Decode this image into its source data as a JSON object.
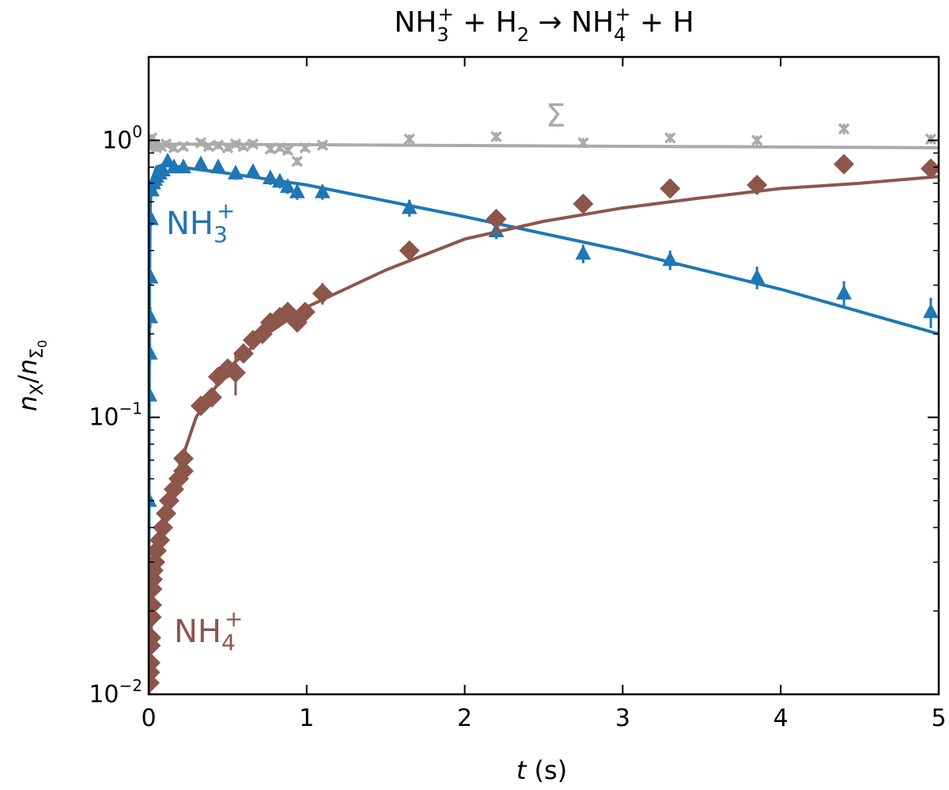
{
  "chart_data": {
    "type": "scatter",
    "title": "NH3+ + H2 → NH4+ + H",
    "title_parts": {
      "a": "NH",
      "a_sub": "3",
      "a_sup": "+",
      "plus1": " + H",
      "b_sub": "2",
      "arrow": " → NH",
      "c_sub": "4",
      "c_sup": "+",
      "end": " + H"
    },
    "xlabel": "t (s)",
    "xlabel_parts": {
      "var": "t",
      "unit": " (s)"
    },
    "ylabel": "nX/nΣ0",
    "ylabel_parts": {
      "n1": "n",
      "sub1": "X",
      "slash": "/",
      "n2": "n",
      "sub2": "Σ",
      "sub2_sub": "0"
    },
    "xlim": [
      0,
      5
    ],
    "ylim": [
      0.01,
      2.0
    ],
    "yscale": "log",
    "grid": false,
    "x_ticks": [
      "0",
      "1",
      "2",
      "3",
      "4",
      "5"
    ],
    "y_ticks": [
      {
        "base": "10",
        "exp": "−2",
        "value": 0.01
      },
      {
        "base": "10",
        "exp": "−1",
        "value": 0.1
      },
      {
        "base": "10",
        "exp": "0",
        "value": 1
      }
    ],
    "series": [
      {
        "name": "Σ",
        "label_parts": {
          "main": "Σ"
        },
        "color": "#aaaaaa",
        "marker": "x",
        "points": [
          {
            "x": 0.0,
            "y": 0.97,
            "err": 0.03
          },
          {
            "x": 0.01,
            "y": 0.99,
            "err": 0.03
          },
          {
            "x": 0.02,
            "y": 1.02,
            "err": 0.03
          },
          {
            "x": 0.04,
            "y": 0.96,
            "err": 0.03
          },
          {
            "x": 0.05,
            "y": 0.94,
            "err": 0.03
          },
          {
            "x": 0.08,
            "y": 0.95,
            "err": 0.03
          },
          {
            "x": 0.11,
            "y": 0.97,
            "err": 0.03
          },
          {
            "x": 0.16,
            "y": 0.94,
            "err": 0.03
          },
          {
            "x": 0.22,
            "y": 0.95,
            "err": 0.03
          },
          {
            "x": 0.33,
            "y": 0.98,
            "err": 0.03
          },
          {
            "x": 0.38,
            "y": 0.95,
            "err": 0.03
          },
          {
            "x": 0.44,
            "y": 0.96,
            "err": 0.03
          },
          {
            "x": 0.5,
            "y": 0.94,
            "err": 0.03
          },
          {
            "x": 0.55,
            "y": 0.97,
            "err": 0.03
          },
          {
            "x": 0.6,
            "y": 0.95,
            "err": 0.03
          },
          {
            "x": 0.66,
            "y": 0.97,
            "err": 0.03
          },
          {
            "x": 0.77,
            "y": 0.93,
            "err": 0.03
          },
          {
            "x": 0.83,
            "y": 0.94,
            "err": 0.03
          },
          {
            "x": 0.88,
            "y": 0.92,
            "err": 0.03
          },
          {
            "x": 0.94,
            "y": 0.84,
            "err": 0.03
          },
          {
            "x": 0.99,
            "y": 0.94,
            "err": 0.03
          },
          {
            "x": 1.1,
            "y": 0.96,
            "err": 0.03
          },
          {
            "x": 1.65,
            "y": 1.01,
            "err": 0.04
          },
          {
            "x": 2.2,
            "y": 1.03,
            "err": 0.04
          },
          {
            "x": 2.75,
            "y": 0.98,
            "err": 0.04
          },
          {
            "x": 3.3,
            "y": 1.02,
            "err": 0.04
          },
          {
            "x": 3.85,
            "y": 1.0,
            "err": 0.04
          },
          {
            "x": 4.4,
            "y": 1.1,
            "err": 0.05
          },
          {
            "x": 4.95,
            "y": 1.01,
            "err": 0.04
          }
        ],
        "fit": [
          {
            "x": 0,
            "y": 0.97
          },
          {
            "x": 5,
            "y": 0.94
          }
        ]
      },
      {
        "name": "NH3+",
        "label_parts": {
          "main": "NH",
          "sub": "3",
          "sup": "+"
        },
        "color": "#1f77b4",
        "marker": "triangle",
        "points": [
          {
            "x": 0.0,
            "y": 0.03,
            "err": 0.003
          },
          {
            "x": 0.003,
            "y": 0.05,
            "err": 0.005
          },
          {
            "x": 0.005,
            "y": 0.12,
            "err": 0.01
          },
          {
            "x": 0.008,
            "y": 0.17,
            "err": 0.015
          },
          {
            "x": 0.01,
            "y": 0.23,
            "err": 0.02
          },
          {
            "x": 0.012,
            "y": 0.32,
            "err": 0.02
          },
          {
            "x": 0.015,
            "y": 0.52,
            "err": 0.03
          },
          {
            "x": 0.02,
            "y": 0.66,
            "err": 0.03
          },
          {
            "x": 0.03,
            "y": 0.7,
            "err": 0.03
          },
          {
            "x": 0.04,
            "y": 0.72,
            "err": 0.03
          },
          {
            "x": 0.05,
            "y": 0.74,
            "err": 0.03
          },
          {
            "x": 0.07,
            "y": 0.76,
            "err": 0.03
          },
          {
            "x": 0.09,
            "y": 0.78,
            "err": 0.03
          },
          {
            "x": 0.12,
            "y": 0.84,
            "err": 0.04
          },
          {
            "x": 0.16,
            "y": 0.8,
            "err": 0.04
          },
          {
            "x": 0.22,
            "y": 0.8,
            "err": 0.04
          },
          {
            "x": 0.33,
            "y": 0.82,
            "err": 0.04
          },
          {
            "x": 0.44,
            "y": 0.8,
            "err": 0.04
          },
          {
            "x": 0.55,
            "y": 0.76,
            "err": 0.04
          },
          {
            "x": 0.66,
            "y": 0.77,
            "err": 0.04
          },
          {
            "x": 0.77,
            "y": 0.73,
            "err": 0.04
          },
          {
            "x": 0.83,
            "y": 0.71,
            "err": 0.04
          },
          {
            "x": 0.88,
            "y": 0.68,
            "err": 0.04
          },
          {
            "x": 0.94,
            "y": 0.65,
            "err": 0.04
          },
          {
            "x": 1.1,
            "y": 0.65,
            "err": 0.04
          },
          {
            "x": 1.65,
            "y": 0.57,
            "err": 0.04
          },
          {
            "x": 2.2,
            "y": 0.47,
            "err": 0.03
          },
          {
            "x": 2.75,
            "y": 0.39,
            "err": 0.03
          },
          {
            "x": 3.3,
            "y": 0.37,
            "err": 0.03
          },
          {
            "x": 3.85,
            "y": 0.32,
            "err": 0.03
          },
          {
            "x": 4.4,
            "y": 0.28,
            "err": 0.03
          },
          {
            "x": 4.95,
            "y": 0.24,
            "err": 0.03
          }
        ],
        "fit": [
          {
            "x": 0,
            "y": 0.015
          },
          {
            "x": 0.005,
            "y": 0.3
          },
          {
            "x": 0.01,
            "y": 0.58
          },
          {
            "x": 0.02,
            "y": 0.72
          },
          {
            "x": 0.05,
            "y": 0.8
          },
          {
            "x": 0.1,
            "y": 0.82
          },
          {
            "x": 0.2,
            "y": 0.8
          },
          {
            "x": 0.5,
            "y": 0.76
          },
          {
            "x": 1,
            "y": 0.69
          },
          {
            "x": 2,
            "y": 0.53
          },
          {
            "x": 3,
            "y": 0.4
          },
          {
            "x": 4,
            "y": 0.29
          },
          {
            "x": 5,
            "y": 0.2
          }
        ]
      },
      {
        "name": "NH4+",
        "label_parts": {
          "main": "NH",
          "sub": "4",
          "sup": "+"
        },
        "color": "#8c564b",
        "marker": "diamond",
        "points": [
          {
            "x": 0.005,
            "y": 0.011,
            "err": 0.001
          },
          {
            "x": 0.008,
            "y": 0.012,
            "err": 0.001
          },
          {
            "x": 0.01,
            "y": 0.013,
            "err": 0.001
          },
          {
            "x": 0.012,
            "y": 0.015,
            "err": 0.001
          },
          {
            "x": 0.015,
            "y": 0.016,
            "err": 0.001
          },
          {
            "x": 0.018,
            "y": 0.019,
            "err": 0.001
          },
          {
            "x": 0.02,
            "y": 0.021,
            "err": 0.002
          },
          {
            "x": 0.022,
            "y": 0.024,
            "err": 0.002
          },
          {
            "x": 0.025,
            "y": 0.026,
            "err": 0.002
          },
          {
            "x": 0.03,
            "y": 0.028,
            "err": 0.002
          },
          {
            "x": 0.04,
            "y": 0.03,
            "err": 0.002
          },
          {
            "x": 0.05,
            "y": 0.033,
            "err": 0.002
          },
          {
            "x": 0.07,
            "y": 0.036,
            "err": 0.002
          },
          {
            "x": 0.09,
            "y": 0.04,
            "err": 0.002
          },
          {
            "x": 0.11,
            "y": 0.045,
            "err": 0.003
          },
          {
            "x": 0.13,
            "y": 0.05,
            "err": 0.003
          },
          {
            "x": 0.16,
            "y": 0.055,
            "err": 0.003
          },
          {
            "x": 0.19,
            "y": 0.06,
            "err": 0.003
          },
          {
            "x": 0.22,
            "y": 0.064,
            "err": 0.004
          },
          {
            "x": 0.22,
            "y": 0.071,
            "err": 0.004
          },
          {
            "x": 0.33,
            "y": 0.11,
            "err": 0.006
          },
          {
            "x": 0.4,
            "y": 0.118,
            "err": 0.006
          },
          {
            "x": 0.44,
            "y": 0.14,
            "err": 0.008
          },
          {
            "x": 0.5,
            "y": 0.15,
            "err": 0.008
          },
          {
            "x": 0.55,
            "y": 0.145,
            "err": 0.025
          },
          {
            "x": 0.6,
            "y": 0.17,
            "err": 0.01
          },
          {
            "x": 0.66,
            "y": 0.19,
            "err": 0.01
          },
          {
            "x": 0.72,
            "y": 0.2,
            "err": 0.01
          },
          {
            "x": 0.77,
            "y": 0.22,
            "err": 0.012
          },
          {
            "x": 0.83,
            "y": 0.23,
            "err": 0.012
          },
          {
            "x": 0.88,
            "y": 0.24,
            "err": 0.012
          },
          {
            "x": 0.94,
            "y": 0.22,
            "err": 0.012
          },
          {
            "x": 0.99,
            "y": 0.24,
            "err": 0.012
          },
          {
            "x": 1.1,
            "y": 0.28,
            "err": 0.025
          },
          {
            "x": 1.65,
            "y": 0.4,
            "err": 0.03
          },
          {
            "x": 2.2,
            "y": 0.52,
            "err": 0.03
          },
          {
            "x": 2.75,
            "y": 0.59,
            "err": 0.04
          },
          {
            "x": 3.3,
            "y": 0.67,
            "err": 0.04
          },
          {
            "x": 3.85,
            "y": 0.69,
            "err": 0.04
          },
          {
            "x": 4.4,
            "y": 0.82,
            "err": 0.05
          },
          {
            "x": 4.95,
            "y": 0.79,
            "err": 0.04
          }
        ],
        "fit": [
          {
            "x": 0,
            "y": 0.0001
          },
          {
            "x": 0.02,
            "y": 0.02
          },
          {
            "x": 0.05,
            "y": 0.032
          },
          {
            "x": 0.1,
            "y": 0.045
          },
          {
            "x": 0.2,
            "y": 0.068
          },
          {
            "x": 0.3,
            "y": 0.1
          },
          {
            "x": 0.5,
            "y": 0.15
          },
          {
            "x": 0.75,
            "y": 0.2
          },
          {
            "x": 1,
            "y": 0.25
          },
          {
            "x": 1.5,
            "y": 0.34
          },
          {
            "x": 2,
            "y": 0.44
          },
          {
            "x": 2.5,
            "y": 0.51
          },
          {
            "x": 3,
            "y": 0.57
          },
          {
            "x": 3.5,
            "y": 0.62
          },
          {
            "x": 4,
            "y": 0.67
          },
          {
            "x": 4.5,
            "y": 0.7
          },
          {
            "x": 5,
            "y": 0.74
          }
        ]
      }
    ]
  }
}
